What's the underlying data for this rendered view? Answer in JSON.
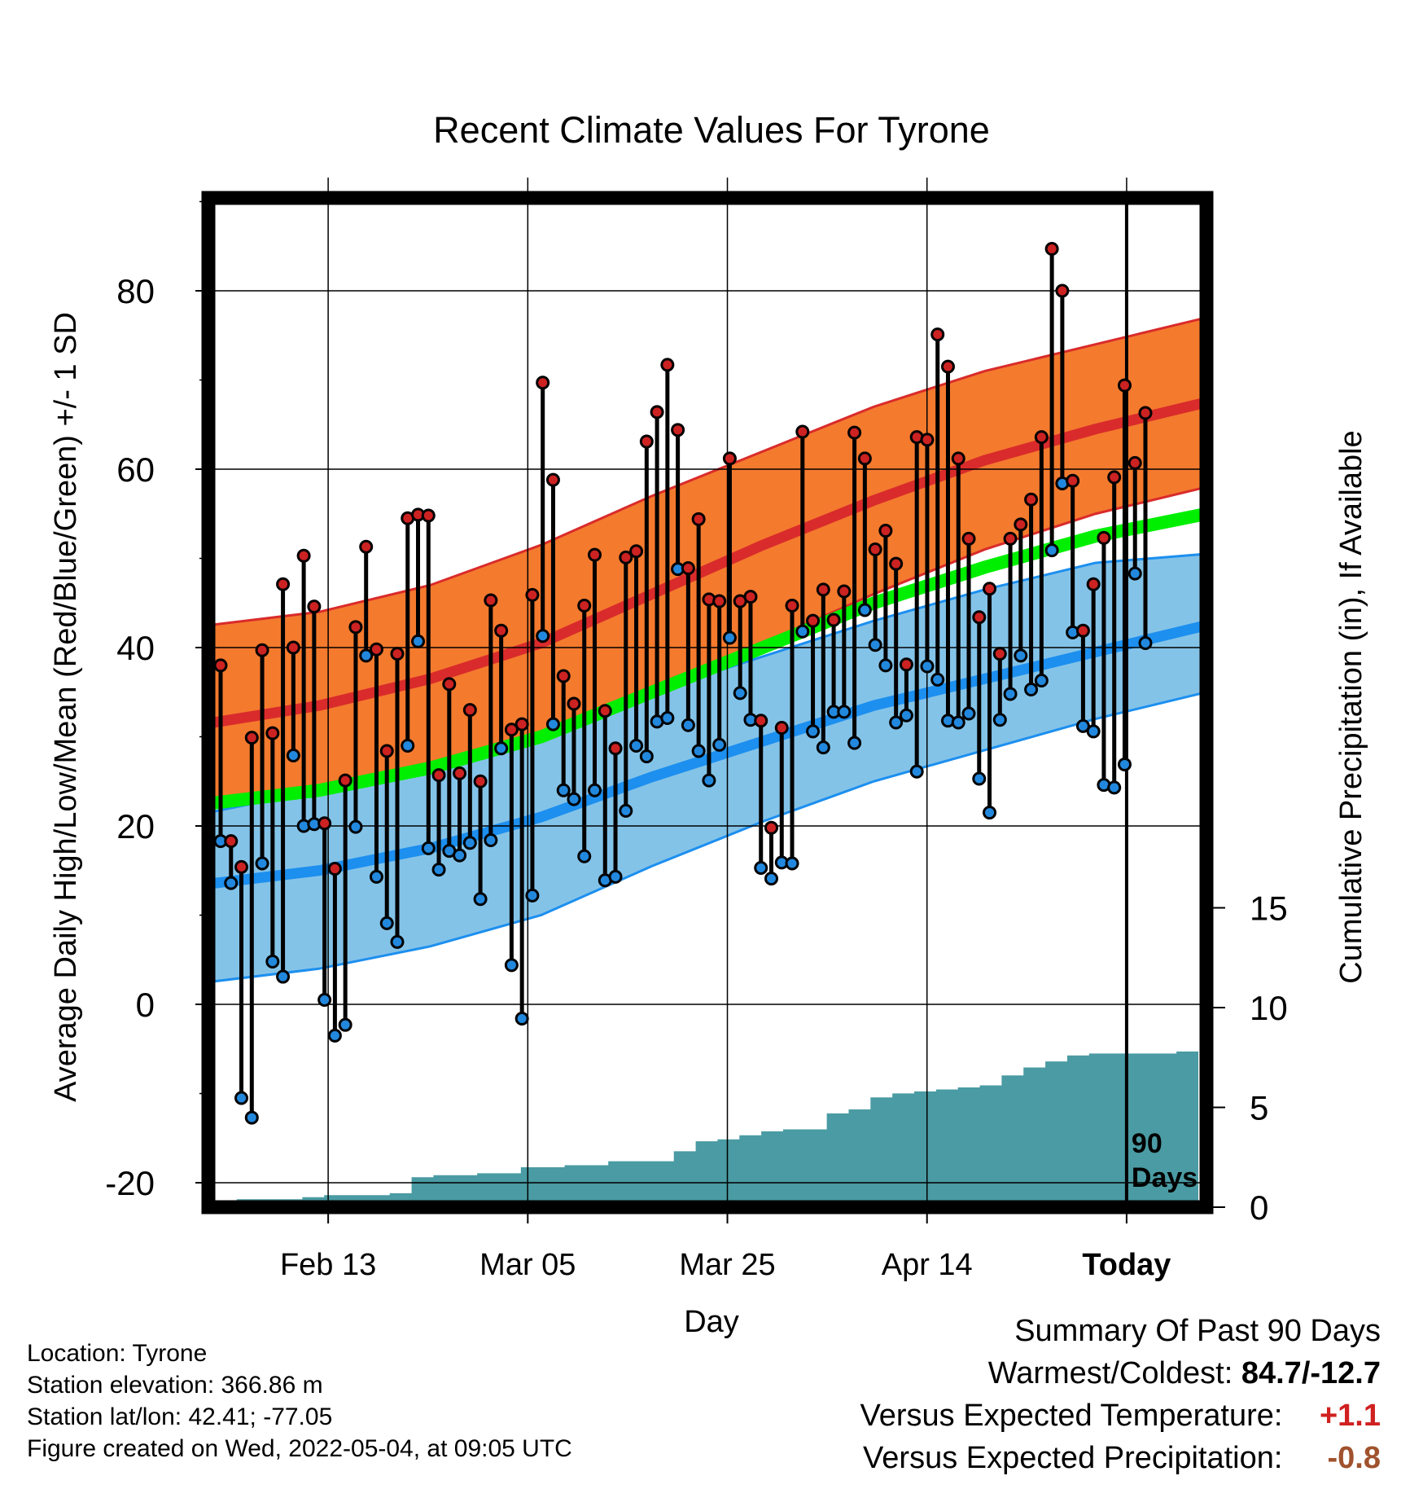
{
  "chart_data": {
    "type": "line",
    "title": "Recent Climate Values For Tyrone",
    "xlabel": "Day",
    "ylabel": "Average Daily High/Low/Mean (Red/Blue/Green) +/- 1 SD",
    "y2label": "Cumulative Precipitation (in), If Available",
    "x_ticks": [
      "Feb 13",
      "Mar 05",
      "Mar 25",
      "Apr 14",
      "Today"
    ],
    "ylim": [
      -22,
      90
    ],
    "y_ticks": [
      -20,
      0,
      20,
      40,
      60,
      80
    ],
    "y2lim": [
      0,
      30
    ],
    "y2_ticks": [
      0,
      5,
      10,
      15
    ],
    "today_label": "90 Days",
    "days_plotted": 100,
    "normals": {
      "high_mean": [
        31.5,
        33.5,
        36.5,
        40.5,
        46.0,
        51.5,
        56.5,
        61.0,
        64.5,
        67.5
      ],
      "high_sd_upper": [
        42.5,
        44.0,
        47.0,
        51.5,
        57.0,
        62.0,
        67.0,
        71.0,
        74.0,
        77.0
      ],
      "high_sd_lower": [
        22.0,
        23.5,
        26.5,
        30.5,
        35.5,
        40.5,
        46.0,
        51.0,
        55.0,
        58.0
      ],
      "low_mean": [
        13.5,
        15.0,
        17.5,
        21.0,
        25.5,
        29.5,
        33.5,
        36.5,
        39.5,
        42.5
      ],
      "low_sd_upper": [
        21.5,
        24.0,
        26.5,
        30.0,
        35.0,
        39.0,
        43.0,
        46.5,
        49.5,
        50.5
      ],
      "low_sd_lower": [
        2.5,
        4.0,
        6.5,
        10.0,
        15.5,
        20.5,
        25.0,
        28.5,
        32.0,
        35.0
      ],
      "mean": [
        22.5,
        24.0,
        26.5,
        30.0,
        35.0,
        40.0,
        45.0,
        49.0,
        52.5,
        55.0
      ]
    },
    "series": [
      {
        "name": "High",
        "values": [
          38.0,
          18.3,
          15.4,
          29.9,
          39.7,
          30.4,
          47.1,
          40.0,
          50.3,
          44.6,
          20.3,
          15.2,
          25.1,
          42.3,
          51.3,
          39.8,
          28.4,
          39.3,
          54.5,
          54.9,
          54.8,
          25.7,
          35.9,
          25.9,
          33.0,
          25.0,
          45.3,
          41.9,
          30.8,
          31.4,
          45.9,
          69.7,
          58.8,
          36.8,
          33.7,
          44.7,
          50.4,
          32.9,
          28.7,
          50.1,
          50.8,
          63.1,
          66.4,
          71.7,
          64.4,
          48.9,
          54.4,
          45.4,
          45.2,
          61.2,
          45.2,
          45.7,
          31.8,
          19.8,
          31.0,
          44.7,
          64.2,
          43.0,
          46.5,
          43.1,
          46.3,
          64.1,
          61.2,
          51.0,
          53.1,
          49.4,
          38.1,
          63.6,
          63.3,
          75.1,
          71.5,
          61.2,
          52.2,
          43.4,
          46.6,
          39.3,
          52.2,
          53.8,
          56.6,
          63.6,
          84.7,
          80.0,
          58.7,
          41.9,
          47.1,
          52.3,
          59.1,
          69.4,
          60.7,
          66.3
        ]
      },
      {
        "name": "Low",
        "values": [
          18.3,
          13.6,
          -10.5,
          -12.7,
          15.8,
          4.8,
          3.1,
          27.9,
          20.0,
          20.2,
          0.5,
          -3.5,
          -2.3,
          19.9,
          39.1,
          14.3,
          9.1,
          7.0,
          29.0,
          40.7,
          17.5,
          15.1,
          17.2,
          16.7,
          18.1,
          11.8,
          18.4,
          28.7,
          4.4,
          -1.6,
          12.2,
          41.3,
          31.4,
          24.0,
          23.0,
          16.6,
          24.0,
          13.9,
          14.3,
          21.7,
          29.0,
          27.8,
          31.7,
          32.1,
          48.8,
          31.3,
          28.4,
          25.1,
          29.1,
          41.1,
          34.9,
          31.9,
          15.3,
          14.1,
          15.9,
          15.8,
          41.8,
          30.6,
          28.8,
          32.8,
          32.8,
          29.3,
          44.2,
          40.3,
          38.0,
          31.6,
          32.4,
          26.1,
          37.9,
          36.4,
          31.8,
          31.6,
          32.6,
          25.3,
          21.5,
          31.9,
          34.8,
          39.1,
          35.3,
          36.3,
          50.9,
          58.4,
          41.7,
          31.2,
          30.6,
          24.6,
          24.3,
          26.9,
          48.3,
          40.5
        ]
      }
    ],
    "precip_cumulative": [
      0.2,
      0.4,
      0.4,
      0.4,
      0.5,
      0.6,
      0.6,
      0.6,
      0.7,
      1.5,
      1.6,
      1.6,
      1.7,
      1.7,
      2.0,
      2.0,
      2.1,
      2.1,
      2.3,
      2.3,
      2.3,
      2.8,
      3.3,
      3.4,
      3.6,
      3.8,
      3.9,
      3.9,
      4.7,
      4.9,
      5.5,
      5.7,
      5.8,
      5.9,
      6.0,
      6.1,
      6.6,
      7.0,
      7.3,
      7.6,
      7.7,
      7.7,
      7.7,
      7.7,
      7.8,
      7.9
    ],
    "grid": true
  },
  "info": {
    "location": "Location: Tyrone",
    "elevation": "Station elevation: 366.86 m",
    "latlon": "Station lat/lon: 42.41; -77.05",
    "created": "Figure created on Wed, 2022-05-04, at 09:05 UTC"
  },
  "summary": {
    "title": "Summary Of Past 90 Days",
    "warm_cold_label": "Warmest/Coldest:",
    "warm_cold_value": "84.7/-12.7",
    "temp_label": "Versus Expected Temperature:",
    "temp_value": "+1.1",
    "precip_label": "Versus Expected Precipitation:",
    "precip_value": "-0.8"
  },
  "colors": {
    "high_band": "#f47a2e",
    "high_line": "#d92b2b",
    "low_band": "#84c3e8",
    "low_line": "#1c8fef",
    "mean_band": "#00ee00",
    "precip": "#4a9ba3",
    "high_dot": "#cc2222",
    "low_dot": "#2288dd"
  }
}
